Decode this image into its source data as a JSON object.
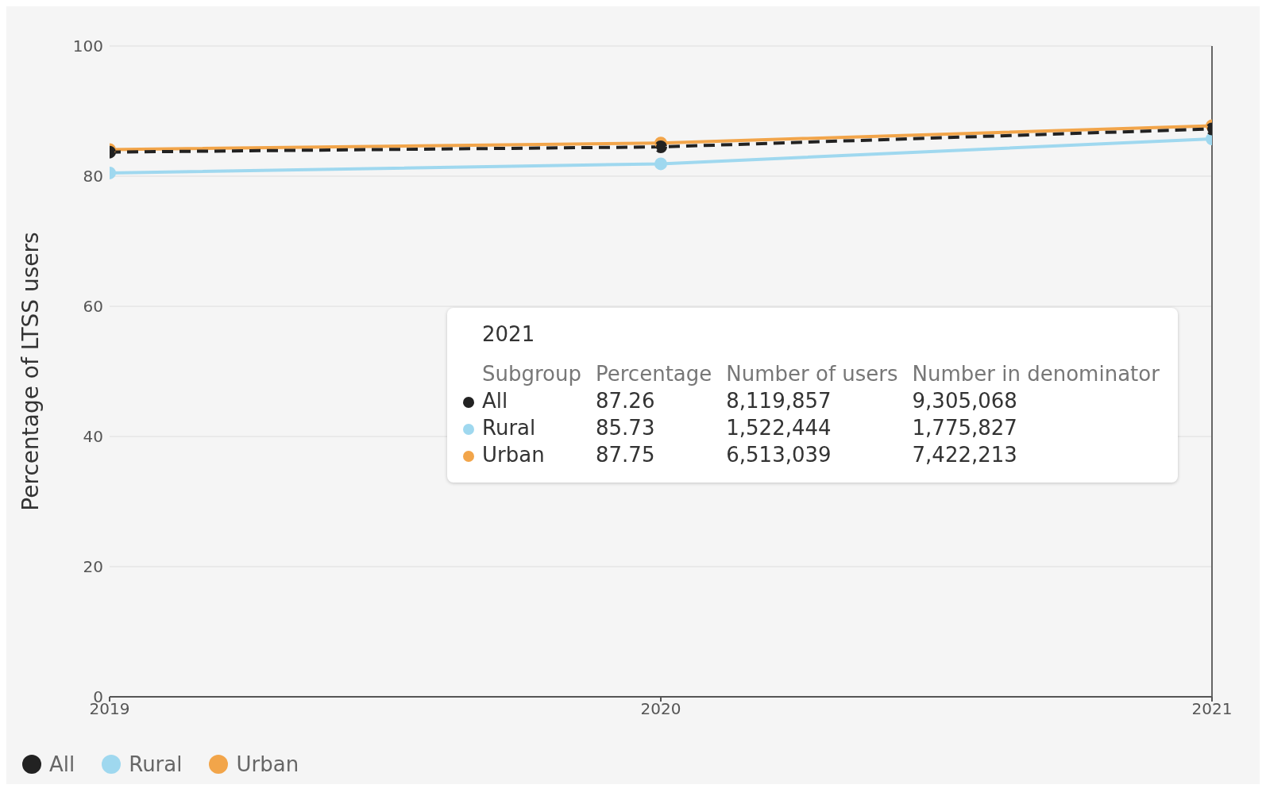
{
  "chart_data": {
    "type": "line",
    "ylabel": "Percentage of LTSS users",
    "x": [
      2019,
      2020,
      2021
    ],
    "series": [
      {
        "name": "All",
        "color": "#222222",
        "values": [
          83.7,
          84.5,
          87.26
        ],
        "line_style": "dashed"
      },
      {
        "name": "Rural",
        "color": "#9fd8ef",
        "values": [
          80.5,
          81.9,
          85.73
        ]
      },
      {
        "name": "Urban",
        "color": "#f2a54a",
        "values": [
          84.1,
          85.1,
          87.75
        ]
      }
    ],
    "xlim": [
      2019,
      2021
    ],
    "xticks": [
      2019,
      2020,
      2021
    ],
    "ylim": [
      0,
      100
    ],
    "yticks": [
      0,
      20,
      40,
      60,
      80,
      100
    ],
    "grid": "y",
    "legend": "bottom left",
    "marker": "circle",
    "ref_lines": [
      {
        "axis": "x",
        "value": 2021,
        "color": "#666666"
      }
    ],
    "annotations": [
      "2021",
      "Subgroup",
      "Percentage",
      "Number of users",
      "Number in denominator",
      "All",
      "87.26",
      "8,119,857",
      "9,305,068",
      "Rural",
      "85.73",
      "1,522,444",
      "1,775,827",
      "Urban",
      "87.75",
      "6,513,039",
      "7,422,213"
    ]
  }
}
